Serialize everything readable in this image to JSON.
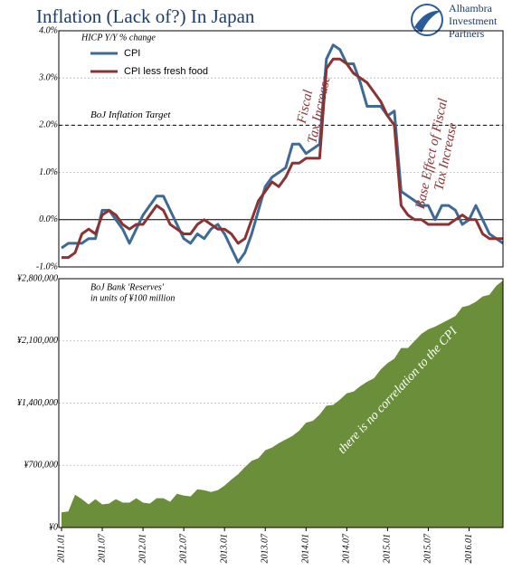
{
  "logo": [
    "Alhambra",
    "Investment",
    "Partners"
  ],
  "chart_data": [
    {
      "type": "line",
      "title": "Inflation (Lack of?) In Japan",
      "subtitle": "HICP Y/Y % change",
      "ylim": [
        -1,
        4
      ],
      "yticks": [
        {
          "value": -1,
          "label": "-1.0%"
        },
        {
          "value": 0,
          "label": "0.0%"
        },
        {
          "value": 1,
          "label": "1.0%"
        },
        {
          "value": 2,
          "label": "2.0%"
        },
        {
          "value": 3,
          "label": "3.0%"
        },
        {
          "value": 4,
          "label": "4.0%"
        }
      ],
      "grid": true,
      "legend": "upper left",
      "target_line": {
        "value": 2,
        "label": "BoJ Inflation Target"
      },
      "annotations": [
        [
          "Fiscal",
          "Tax Increase"
        ],
        [
          "Base Effect of Fiscal",
          "Tax Increase"
        ]
      ],
      "series": [
        {
          "name": "CPI",
          "color": "#3e6a96",
          "values": [
            -0.6,
            -0.5,
            -0.5,
            -0.5,
            -0.4,
            -0.4,
            0.2,
            0.2,
            0.0,
            -0.2,
            -0.5,
            -0.2,
            0.1,
            0.3,
            0.5,
            0.5,
            0.2,
            -0.1,
            -0.4,
            -0.5,
            -0.3,
            -0.4,
            -0.2,
            -0.1,
            -0.3,
            -0.6,
            -0.9,
            -0.7,
            -0.3,
            0.2,
            0.7,
            0.9,
            1.0,
            1.1,
            1.6,
            1.6,
            1.4,
            1.5,
            1.6,
            3.4,
            3.7,
            3.6,
            3.3,
            3.3,
            2.9,
            2.4,
            2.4,
            2.4,
            2.2,
            2.3,
            0.6,
            0.5,
            0.4,
            0.3,
            0.3,
            0.0,
            0.3,
            0.3,
            0.2,
            -0.1,
            0.0,
            0.3,
            0.0,
            -0.3,
            -0.4,
            -0.5
          ]
        },
        {
          "name": "CPI less fresh food",
          "color": "#8b3232",
          "values": [
            -0.8,
            -0.8,
            -0.7,
            -0.3,
            -0.2,
            -0.3,
            0.1,
            0.2,
            0.1,
            -0.1,
            -0.2,
            -0.1,
            -0.1,
            0.1,
            0.3,
            0.2,
            -0.1,
            -0.2,
            -0.3,
            -0.3,
            -0.1,
            0.0,
            -0.1,
            -0.2,
            -0.2,
            -0.3,
            -0.5,
            -0.4,
            0.0,
            0.4,
            0.6,
            0.8,
            0.7,
            0.9,
            1.2,
            1.2,
            1.3,
            1.3,
            1.3,
            3.2,
            3.4,
            3.4,
            3.3,
            3.1,
            3.0,
            2.9,
            2.7,
            2.5,
            2.2,
            2.0,
            0.3,
            0.1,
            0.0,
            0.0,
            -0.1,
            -0.1,
            -0.1,
            -0.1,
            0.0,
            0.1,
            0.0,
            0.0,
            -0.3,
            -0.4,
            -0.4,
            -0.4
          ]
        }
      ]
    },
    {
      "type": "area",
      "subtitle": [
        "BoJ Bank 'Reserves'",
        "in units of ¥100 million"
      ],
      "annotation": "there is no correlation to the CPI",
      "color": "#6b8e3a",
      "grid": true,
      "ylim": [
        0,
        2800000
      ],
      "yticks": [
        {
          "value": 0,
          "label": "¥0"
        },
        {
          "value": 700000,
          "label": "¥700,000"
        },
        {
          "value": 1400000,
          "label": "¥1,400,000"
        },
        {
          "value": 2100000,
          "label": "¥2,100,000"
        },
        {
          "value": 2800000,
          "label": "¥2,800,000"
        }
      ],
      "categories": [
        "2011.01",
        null,
        null,
        null,
        null,
        null,
        "2011.07",
        null,
        null,
        null,
        null,
        null,
        "2012.01",
        null,
        null,
        null,
        null,
        null,
        "2012.07",
        null,
        null,
        null,
        null,
        null,
        "2013.01",
        null,
        null,
        null,
        null,
        null,
        "2013.07",
        null,
        null,
        null,
        null,
        null,
        "2014.01",
        null,
        null,
        null,
        null,
        null,
        "2014.07",
        null,
        null,
        null,
        null,
        null,
        "2015.01",
        null,
        null,
        null,
        null,
        null,
        "2015.07",
        null,
        null,
        null,
        null,
        null,
        "2016.01",
        null,
        null,
        null,
        null,
        null
      ],
      "values": [
        170000,
        180000,
        370000,
        320000,
        260000,
        320000,
        260000,
        270000,
        320000,
        280000,
        280000,
        330000,
        280000,
        270000,
        330000,
        330000,
        290000,
        380000,
        360000,
        350000,
        430000,
        420000,
        400000,
        420000,
        470000,
        540000,
        600000,
        680000,
        750000,
        780000,
        870000,
        900000,
        950000,
        990000,
        1030000,
        1090000,
        1180000,
        1200000,
        1270000,
        1370000,
        1380000,
        1440000,
        1510000,
        1530000,
        1590000,
        1640000,
        1680000,
        1780000,
        1850000,
        1900000,
        2020000,
        2020000,
        2100000,
        2180000,
        2230000,
        2260000,
        2300000,
        2340000,
        2380000,
        2480000,
        2500000,
        2540000,
        2600000,
        2620000,
        2720000,
        2780000
      ]
    }
  ]
}
